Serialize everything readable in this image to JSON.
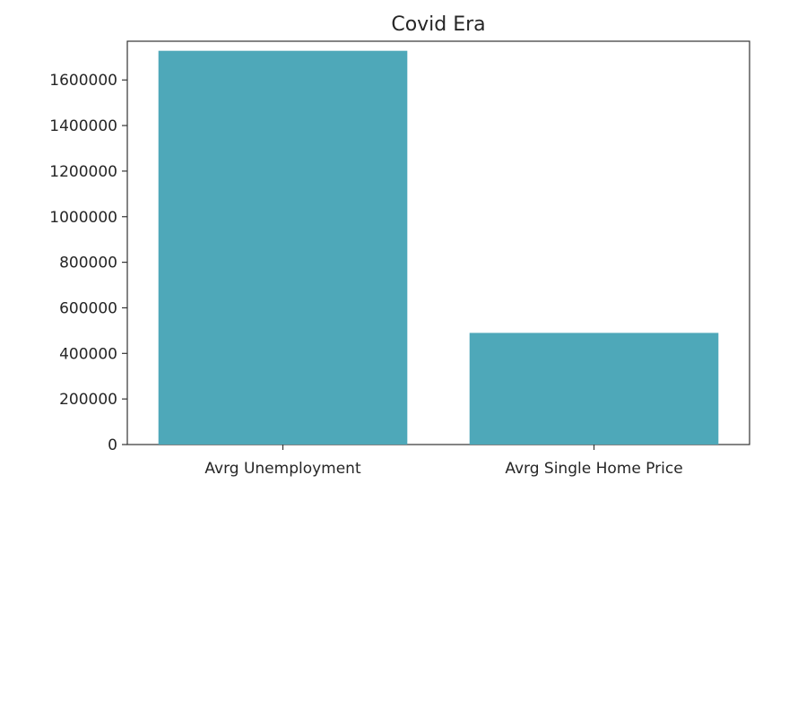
{
  "chart_data": {
    "type": "bar",
    "title": "Covid Era",
    "categories": [
      "Avrg Unemployment",
      "Avrg Single Home Price"
    ],
    "values": [
      1728000,
      490000
    ],
    "ylim": [
      0,
      1770000
    ],
    "yticks": [
      0,
      200000,
      400000,
      600000,
      800000,
      1000000,
      1200000,
      1400000,
      1600000
    ],
    "ytick_labels": [
      "0",
      "200000",
      "400000",
      "600000",
      "800000",
      "1000000",
      "1200000",
      "1400000",
      "1600000"
    ],
    "xlabel": "",
    "ylabel": "",
    "grid": false,
    "bar_color": "#4ea8b9"
  }
}
